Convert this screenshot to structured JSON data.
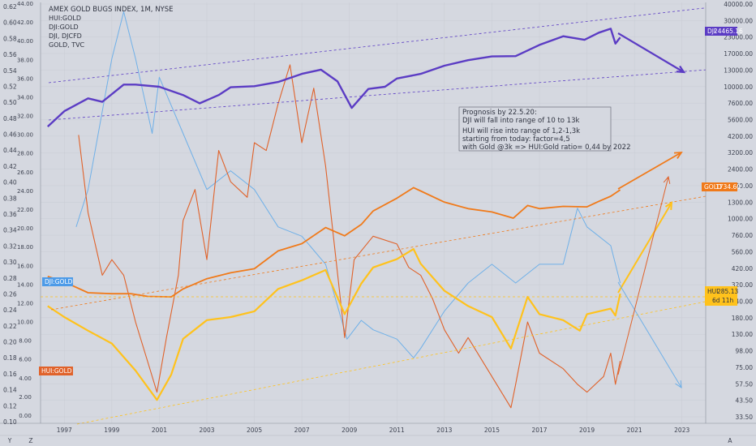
{
  "legend": {
    "title": "AMEX GOLD BUGS INDEX, 1M, NYSE",
    "items": [
      "HUI:GOLD",
      "DJI:GOLD",
      "DJI, DJCFD",
      "GOLD, TVC"
    ]
  },
  "axes": {
    "left_a_ticks": [
      "0.62",
      "0.60",
      "0.58",
      "0.56",
      "0.54",
      "0.52",
      "0.50",
      "0.48",
      "0.46",
      "0.44",
      "0.42",
      "0.40",
      "0.38",
      "0.36",
      "0.34",
      "0.32",
      "0.30",
      "0.28",
      "0.26",
      "0.24",
      "0.22",
      "0.20",
      "0.18",
      "0.16",
      "0.14",
      "0.12",
      "0.10"
    ],
    "left_b_ticks": [
      "44.00",
      "42.00",
      "40.00",
      "38.00",
      "36.00",
      "34.00",
      "32.00",
      "30.00",
      "28.00",
      "26.00",
      "24.00",
      "22.00",
      "20.00",
      "18.00",
      "16.00",
      "14.00",
      "12.00",
      "10.00",
      "8.00",
      "6.00",
      "4.00",
      "2.00",
      "0.00"
    ],
    "right_ticks": [
      "40000.00",
      "30000.00",
      "23000.00",
      "17000.00",
      "13000.00",
      "10000.00",
      "7600.00",
      "5600.00",
      "4200.00",
      "3200.00",
      "2400.00",
      "1800.00",
      "1300.00",
      "1000.00",
      "760.00",
      "560.00",
      "420.00",
      "320.00",
      "240.00",
      "180.00",
      "130.00",
      "98.00",
      "75.00",
      "57.50",
      "43.50",
      "33.50"
    ],
    "x_ticks": [
      "1997",
      "1999",
      "2001",
      "2003",
      "2005",
      "2007",
      "2009",
      "2011",
      "2013",
      "2015",
      "2017",
      "2019",
      "2021",
      "2023"
    ],
    "corner_left": "Y",
    "corner_mid": "Z",
    "corner_right": "A"
  },
  "labels": {
    "dji": "DJI",
    "dji_val": "24465.16",
    "gold": "GOLD",
    "gold_val": "1734.60",
    "hui": "HUI",
    "hui_val": "285.13",
    "hui_time": "6d 11h",
    "dji_gold": "DJI:GOLD",
    "hui_gold": "HUI:GOLD"
  },
  "note": [
    "Prognosis by 22.5.20:",
    "DJI will fall into range of 10 to 13k",
    "",
    "HUI will rise into range of 1,2-1,3k",
    "starting from today: factor=4,5",
    "with Gold @3k => HUI:Gold ratio= 0,44 by 2022"
  ],
  "colors": {
    "dji": "#5b3cc4",
    "gold": "#f07a1a",
    "hui": "#ffc21c",
    "dji_gold": "#6fb0e8",
    "hui_gold": "#e0622a",
    "bg": "#d5d8e0"
  },
  "chart_data": {
    "type": "line",
    "title": "AMEX GOLD BUGS INDEX, 1M, NYSE",
    "x_range": [
      1996,
      2024
    ],
    "scales": {
      "left_a": [
        0.09,
        0.63
      ],
      "left_b": [
        -1,
        44
      ],
      "right_log": [
        30,
        45000
      ]
    },
    "series": [
      {
        "name": "DJI, DJCFD",
        "scale": "right_log",
        "x": [
          1996.3,
          1997,
          1998,
          1998.6,
          1999.5,
          2000,
          2001,
          2002,
          2002.7,
          2003.5,
          2004,
          2005,
          2006,
          2007,
          2007.8,
          2008.5,
          2009.1,
          2009.8,
          2010.5,
          2011,
          2012,
          2013,
          2014,
          2015,
          2016,
          2017,
          2018,
          2018.9,
          2019.5,
          2020.0,
          2020.2,
          2020.4
        ],
        "y": [
          5200,
          6800,
          8500,
          8000,
          10800,
          10800,
          10400,
          9000,
          7800,
          9000,
          10300,
          10500,
          11300,
          13000,
          14000,
          11400,
          7200,
          10000,
          10400,
          12000,
          13000,
          15000,
          16500,
          17600,
          17700,
          21500,
          25000,
          23500,
          26600,
          28500,
          22000,
          24465
        ]
      },
      {
        "name": "GOLD, TVC",
        "scale": "right_log",
        "x": [
          1996.3,
          1997,
          1998,
          1999,
          1999.8,
          2000.5,
          2001.5,
          2002,
          2003,
          2004,
          2005,
          2006,
          2007,
          2008,
          2008.8,
          2009.5,
          2010,
          2011,
          2011.7,
          2012,
          2013,
          2014,
          2015,
          2015.9,
          2016.5,
          2017,
          2018,
          2019,
          2019.5,
          2020,
          2020.4
        ],
        "y": [
          385,
          350,
          290,
          285,
          285,
          272,
          270,
          310,
          370,
          410,
          440,
          600,
          680,
          900,
          780,
          950,
          1200,
          1500,
          1800,
          1700,
          1400,
          1250,
          1180,
          1060,
          1320,
          1250,
          1300,
          1290,
          1420,
          1550,
          1734
        ]
      },
      {
        "name": "AMEX GOLD BUGS INDEX",
        "scale": "right_log",
        "x": [
          1996.3,
          1997,
          1998,
          1999,
          2000,
          2000.9,
          2001.5,
          2002,
          2003,
          2004,
          2005,
          2006,
          2007,
          2008,
          2008.8,
          2009.5,
          2010,
          2011,
          2011.7,
          2012,
          2013,
          2014,
          2015,
          2015.8,
          2016.5,
          2017,
          2018,
          2018.7,
          2019,
          2020,
          2020.2,
          2020.4
        ],
        "y": [
          230,
          190,
          150,
          120,
          75,
          45,
          70,
          130,
          180,
          190,
          210,
          310,
          360,
          430,
          200,
          340,
          450,
          520,
          620,
          480,
          300,
          230,
          190,
          110,
          270,
          200,
          180,
          150,
          200,
          220,
          195,
          285
        ]
      },
      {
        "name": "DJI:GOLD",
        "scale": "left_b",
        "x": [
          1997.5,
          1998,
          1999,
          1999.5,
          2000,
          2000.7,
          2001,
          2002,
          2003,
          2004,
          2005,
          2006,
          2007,
          2008,
          2008.9,
          2009.5,
          2010,
          2011,
          2011.7,
          2012,
          2013,
          2014,
          2015,
          2016,
          2017,
          2018,
          2018.6,
          2019,
          2020,
          2020.4
        ],
        "y": [
          20,
          24,
          38,
          43,
          38,
          30,
          36,
          30,
          24,
          26,
          24,
          20,
          19,
          16,
          8,
          10,
          9,
          8,
          6,
          7,
          11,
          14,
          16,
          14,
          16,
          16,
          22,
          20,
          18,
          14
        ]
      },
      {
        "name": "HUI:GOLD",
        "scale": "left_a",
        "x": [
          1997.6,
          1998,
          1998.6,
          1999,
          1999.5,
          2000,
          2000.5,
          2000.9,
          2001.3,
          2001.8,
          2002,
          2002.5,
          2003,
          2003.5,
          2004,
          2004.7,
          2005,
          2005.5,
          2006,
          2006.5,
          2007,
          2007.5,
          2008,
          2008.8,
          2009.2,
          2010,
          2011,
          2011.5,
          2012,
          2012.5,
          2013,
          2013.6,
          2014,
          2015,
          2015.8,
          2016,
          2016.5,
          2017,
          2018,
          2018.6,
          2019,
          2019.7,
          2020,
          2020.2,
          2020.4
        ],
        "y": [
          0.46,
          0.36,
          0.28,
          0.3,
          0.28,
          0.22,
          0.17,
          0.13,
          0.2,
          0.28,
          0.35,
          0.39,
          0.3,
          0.44,
          0.4,
          0.38,
          0.45,
          0.44,
          0.5,
          0.55,
          0.45,
          0.52,
          0.42,
          0.2,
          0.3,
          0.33,
          0.32,
          0.29,
          0.28,
          0.25,
          0.21,
          0.18,
          0.2,
          0.15,
          0.11,
          0.14,
          0.22,
          0.18,
          0.16,
          0.14,
          0.13,
          0.15,
          0.18,
          0.14,
          0.17
        ]
      }
    ]
  }
}
